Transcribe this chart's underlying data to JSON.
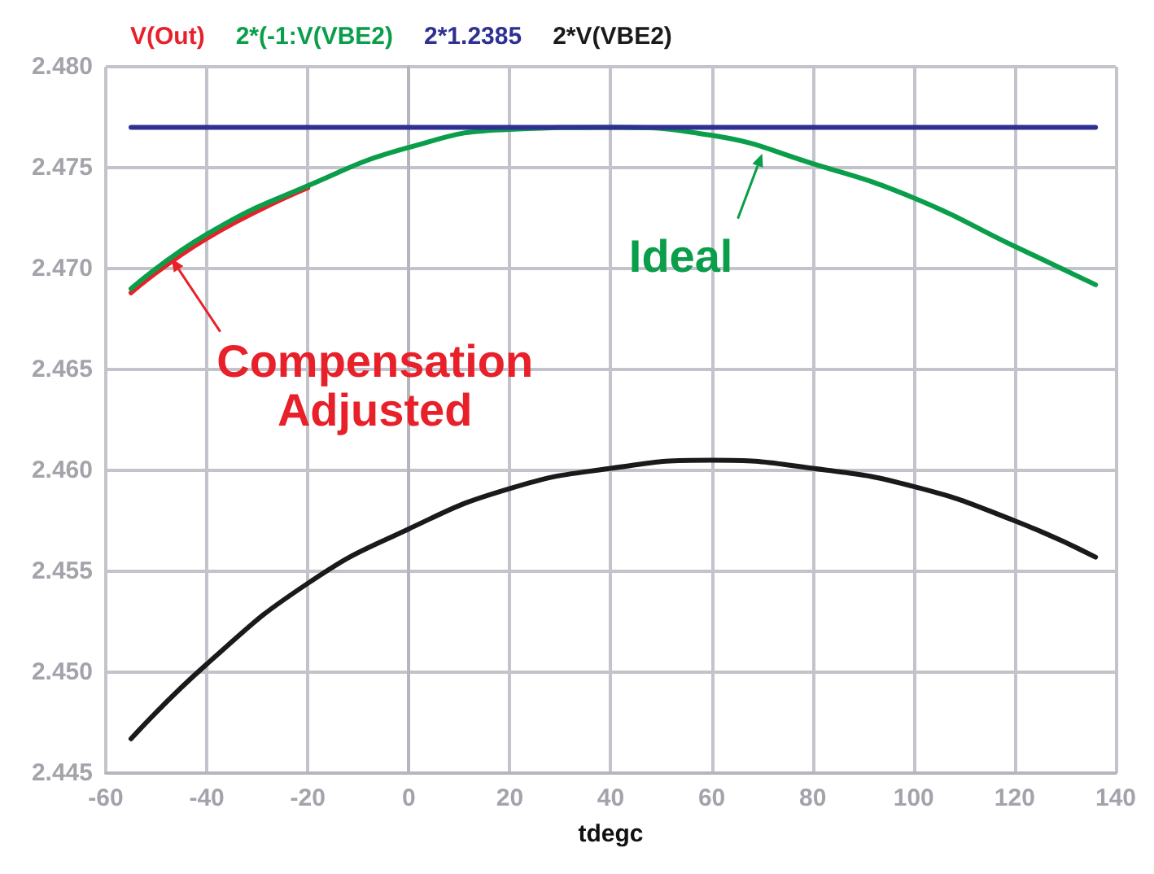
{
  "chart_data": {
    "type": "line",
    "xlabel": "tdegc",
    "xlim": [
      -60,
      140
    ],
    "xticks": [
      -60,
      -40,
      -20,
      0,
      20,
      40,
      60,
      80,
      100,
      120,
      140
    ],
    "ylim": [
      2.445,
      2.48
    ],
    "yticks": [
      {
        "value": 2.445,
        "label": "2.445"
      },
      {
        "value": 2.45,
        "label": "2.450"
      },
      {
        "value": 2.455,
        "label": "2.455"
      },
      {
        "value": 2.46,
        "label": "2.460"
      },
      {
        "value": 2.465,
        "label": "2.465"
      },
      {
        "value": 2.47,
        "label": "2.470"
      },
      {
        "value": 2.475,
        "label": "2.475"
      },
      {
        "value": 2.48,
        "label": "2.480"
      }
    ],
    "x": [
      -55,
      -40,
      -20,
      0,
      20,
      40,
      60,
      80,
      100,
      120,
      136
    ],
    "series": [
      {
        "name": "V(Out)",
        "color": "#e8202a",
        "values": [
          2.4688,
          2.4715,
          2.474,
          null,
          null,
          null,
          null,
          null,
          null,
          null,
          null
        ]
      },
      {
        "name": "2*(-1:V(VBE2)",
        "color": "#0a9e4a",
        "values": [
          2.469,
          2.4717,
          2.4741,
          2.476,
          2.4769,
          2.477,
          2.4766,
          2.4752,
          2.4735,
          2.4711,
          2.4692
        ]
      },
      {
        "name": "2*1.2385",
        "color": "#2e3192",
        "values": [
          2.477,
          2.477,
          2.477,
          2.477,
          2.477,
          2.477,
          2.477,
          2.477,
          2.477,
          2.477,
          2.477
        ]
      },
      {
        "name": "2*V(VBE2)",
        "color": "#1a1a1a",
        "values": [
          2.4467,
          2.4504,
          2.4544,
          2.4571,
          2.4591,
          2.4601,
          2.4605,
          2.4601,
          2.4592,
          2.4575,
          2.4557
        ]
      }
    ],
    "annotations": [
      {
        "text": "Compensation\nAdjusted",
        "x": -47,
        "y": 2.4705
      },
      {
        "text": "Ideal",
        "x": 70,
        "y": 2.4757
      }
    ],
    "grid": true,
    "legend": "top left",
    "marker": "none",
    "line_style": "solid"
  }
}
